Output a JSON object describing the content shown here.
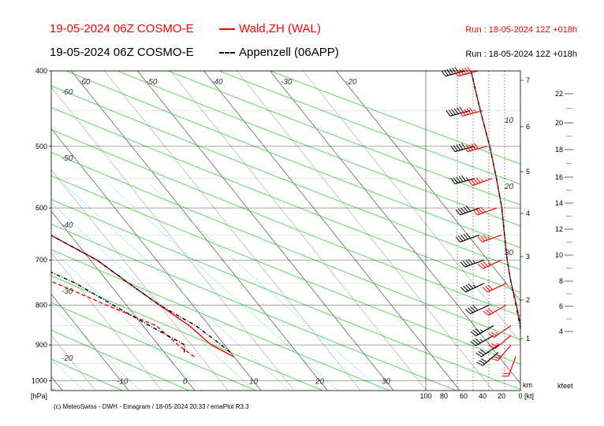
{
  "header": {
    "line1_title": "19-05-2024 06Z COSMO-E",
    "line1_legend": "Wald,ZH (WAL)",
    "line1_run": "Run : 18-05-2024 12Z +018h",
    "line2_title": "19-05-2024 06Z COSMO-E",
    "line2_legend": "Appenzell (06APP)",
    "line2_run": "Run : 18-05-2024 12Z +018h"
  },
  "footer": {
    "credit": "(c) MeteoSwiss - DWH - Emagram / 18-05-2024  20:33 / emaPlot R3.3"
  },
  "colors": {
    "wal": "#ff0000",
    "app": "#000000",
    "isotherm": "#222222",
    "dry_adiabat": "#3ad23a",
    "mixing_ratio": "#7fd4ff",
    "isobar": "#000000"
  },
  "chart_data": {
    "type": "line",
    "pressure_axis": {
      "label": "[hPa]",
      "ticks": [
        "400",
        "500",
        "600",
        "700",
        "800",
        "900",
        "1000"
      ],
      "range": [
        400,
        1030
      ]
    },
    "temperature_axis": {
      "tick_labels": [
        "-10",
        "0",
        "10",
        "20",
        "30"
      ],
      "isotherm_labels_upper": [
        "-60",
        "-50",
        "-40",
        "-30",
        "-20"
      ],
      "isotherm_labels_left": [
        "-60",
        "-50",
        "-40",
        "-30",
        "-20"
      ],
      "isotherm_labels_right": [
        "10",
        "20",
        "30"
      ]
    },
    "wind_axis": {
      "unit": "[kt]",
      "ticks": [
        "100",
        "80",
        "60",
        "40",
        "20",
        "0"
      ]
    },
    "km_axis": {
      "unit": "km",
      "ticks": [
        "1",
        "2",
        "3",
        "4",
        "5",
        "6",
        "7"
      ]
    },
    "kfeet_axis": {
      "unit": "kfeet",
      "ticks": [
        "4",
        "6",
        "8",
        "10",
        "12",
        "14",
        "16",
        "18",
        "20",
        "22"
      ]
    },
    "series": [
      {
        "name": "Wald,ZH (WAL)",
        "style": "solid",
        "temperature": [
          [
            932,
            10
          ],
          [
            900,
            8
          ],
          [
            850,
            7
          ],
          [
            800,
            5
          ],
          [
            750,
            3
          ],
          [
            700,
            1
          ],
          [
            650,
            -3
          ],
          [
            600,
            -7
          ],
          [
            550,
            -12
          ],
          [
            500,
            -17
          ],
          [
            450,
            -25
          ],
          [
            400,
            -32
          ]
        ],
        "dewpoint": [
          [
            932,
            4
          ],
          [
            900,
            3
          ],
          [
            850,
            2
          ],
          [
            800,
            -3
          ],
          [
            750,
            -8
          ],
          [
            700,
            -14
          ],
          [
            650,
            -20
          ],
          [
            600,
            -28
          ],
          [
            550,
            -37
          ],
          [
            500,
            -40
          ],
          [
            450,
            -34
          ],
          [
            400,
            -40
          ]
        ],
        "temperature_right": [
          [
            932,
            9.5
          ],
          [
            900,
            8
          ],
          [
            850,
            6
          ],
          [
            800,
            3
          ],
          [
            750,
            -1
          ],
          [
            700,
            -4
          ],
          [
            650,
            -6
          ],
          [
            600,
            -8
          ],
          [
            550,
            -12
          ],
          [
            500,
            -17
          ],
          [
            450,
            -24
          ],
          [
            400,
            -31
          ]
        ]
      },
      {
        "name": "Appenzell (06APP)",
        "style": "dash-dot",
        "temperature": [
          [
            920,
            10
          ],
          [
            900,
            9.5
          ],
          [
            850,
            8
          ],
          [
            800,
            5
          ],
          [
            750,
            3
          ],
          [
            700,
            1
          ],
          [
            650,
            -3
          ],
          [
            600,
            -7
          ],
          [
            550,
            -12
          ],
          [
            500,
            -17
          ],
          [
            450,
            -25
          ],
          [
            400,
            -32
          ]
        ],
        "dewpoint": [
          [
            920,
            3
          ],
          [
            900,
            4
          ],
          [
            850,
            1
          ],
          [
            800,
            -2
          ],
          [
            750,
            -5
          ],
          [
            700,
            -10
          ],
          [
            650,
            -16
          ],
          [
            600,
            -26
          ],
          [
            550,
            -34
          ],
          [
            500,
            -38
          ],
          [
            450,
            -35
          ],
          [
            400,
            -40
          ]
        ],
        "temperature_right": [
          [
            920,
            9
          ],
          [
            900,
            7.5
          ],
          [
            850,
            5.5
          ],
          [
            800,
            2.5
          ],
          [
            750,
            -1
          ],
          [
            700,
            -4
          ],
          [
            650,
            -6
          ],
          [
            600,
            -8
          ],
          [
            550,
            -12
          ],
          [
            500,
            -17
          ],
          [
            450,
            -24
          ],
          [
            400,
            -31
          ]
        ]
      }
    ],
    "wind_barbs": {
      "wal": [
        [
          932,
          20,
          200
        ],
        [
          900,
          25,
          220
        ],
        [
          875,
          25,
          230
        ],
        [
          850,
          25,
          235
        ],
        [
          800,
          30,
          240
        ],
        [
          750,
          30,
          245
        ],
        [
          700,
          35,
          245
        ],
        [
          650,
          35,
          250
        ],
        [
          600,
          40,
          250
        ],
        [
          550,
          45,
          250
        ],
        [
          500,
          50,
          255
        ],
        [
          450,
          55,
          255
        ],
        [
          400,
          60,
          255
        ]
      ],
      "app": [
        [
          920,
          30,
          230
        ],
        [
          900,
          30,
          235
        ],
        [
          875,
          35,
          240
        ],
        [
          850,
          35,
          240
        ],
        [
          800,
          40,
          245
        ],
        [
          750,
          45,
          245
        ],
        [
          700,
          45,
          250
        ],
        [
          650,
          50,
          250
        ],
        [
          600,
          50,
          250
        ],
        [
          550,
          55,
          255
        ],
        [
          500,
          55,
          255
        ],
        [
          450,
          60,
          255
        ],
        [
          400,
          65,
          255
        ]
      ]
    }
  }
}
